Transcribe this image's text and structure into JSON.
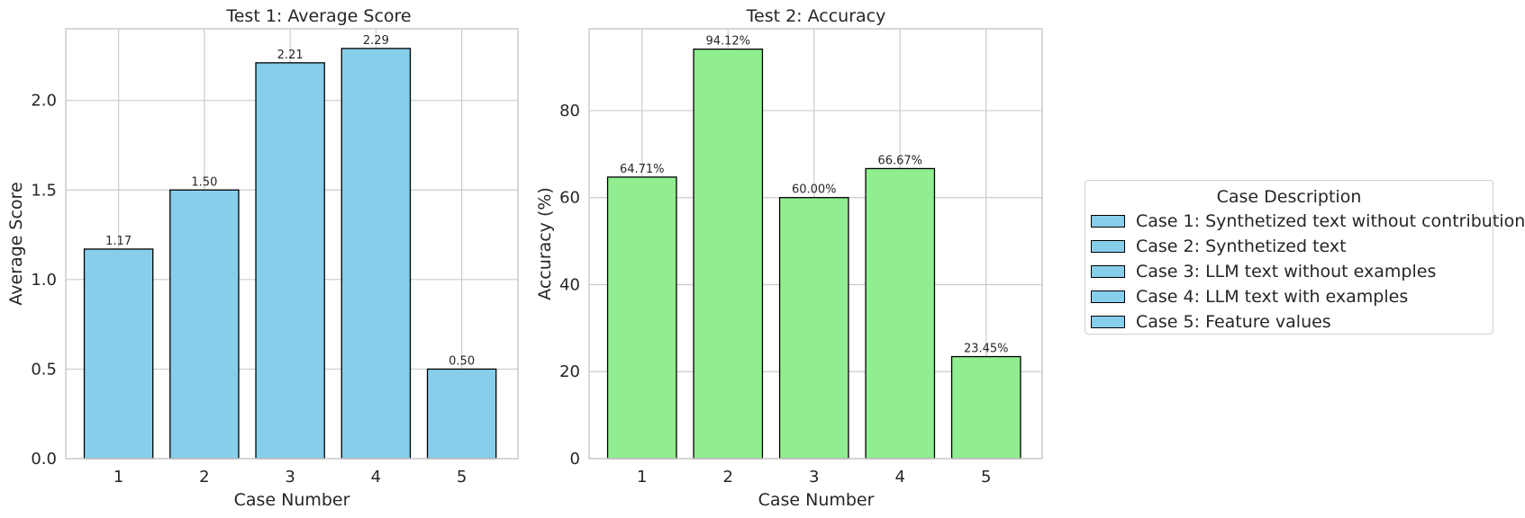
{
  "chart_data": [
    {
      "type": "bar",
      "title": "Test 1: Average Score",
      "xlabel": "Case Number",
      "ylabel": "Average Score",
      "categories": [
        "1",
        "2",
        "3",
        "4",
        "5"
      ],
      "values": [
        1.17,
        1.5,
        2.21,
        2.29,
        0.5
      ],
      "value_labels": [
        "1.17",
        "1.50",
        "2.21",
        "2.29",
        "0.50"
      ],
      "ylim": [
        0,
        2.4
      ],
      "yticks": [
        0.0,
        0.5,
        1.0,
        1.5,
        2.0
      ],
      "ytick_labels": [
        "0.0",
        "0.5",
        "1.0",
        "1.5",
        "2.0"
      ],
      "bar_color": "#87CEEB",
      "grid": true
    },
    {
      "type": "bar",
      "title": "Test 2: Accuracy",
      "xlabel": "Case Number",
      "ylabel": "Accuracy (%)",
      "categories": [
        "1",
        "2",
        "3",
        "4",
        "5"
      ],
      "values": [
        64.71,
        94.12,
        60.0,
        66.67,
        23.45
      ],
      "value_labels": [
        "64.71%",
        "94.12%",
        "60.00%",
        "66.67%",
        "23.45%"
      ],
      "ylim": [
        0,
        98.8
      ],
      "yticks": [
        0,
        20,
        40,
        60,
        80
      ],
      "ytick_labels": [
        "0",
        "20",
        "40",
        "60",
        "80"
      ],
      "bar_color": "#90EE90",
      "grid": true
    }
  ],
  "legend": {
    "title": "Case Description",
    "placement": "right",
    "swatch_color": "#87CEEB",
    "items": [
      "Case 1: Synthetized text without contribution",
      "Case 2: Synthetized text",
      "Case 3: LLM text without examples",
      "Case 4: LLM text with examples",
      "Case 5: Feature values"
    ]
  }
}
